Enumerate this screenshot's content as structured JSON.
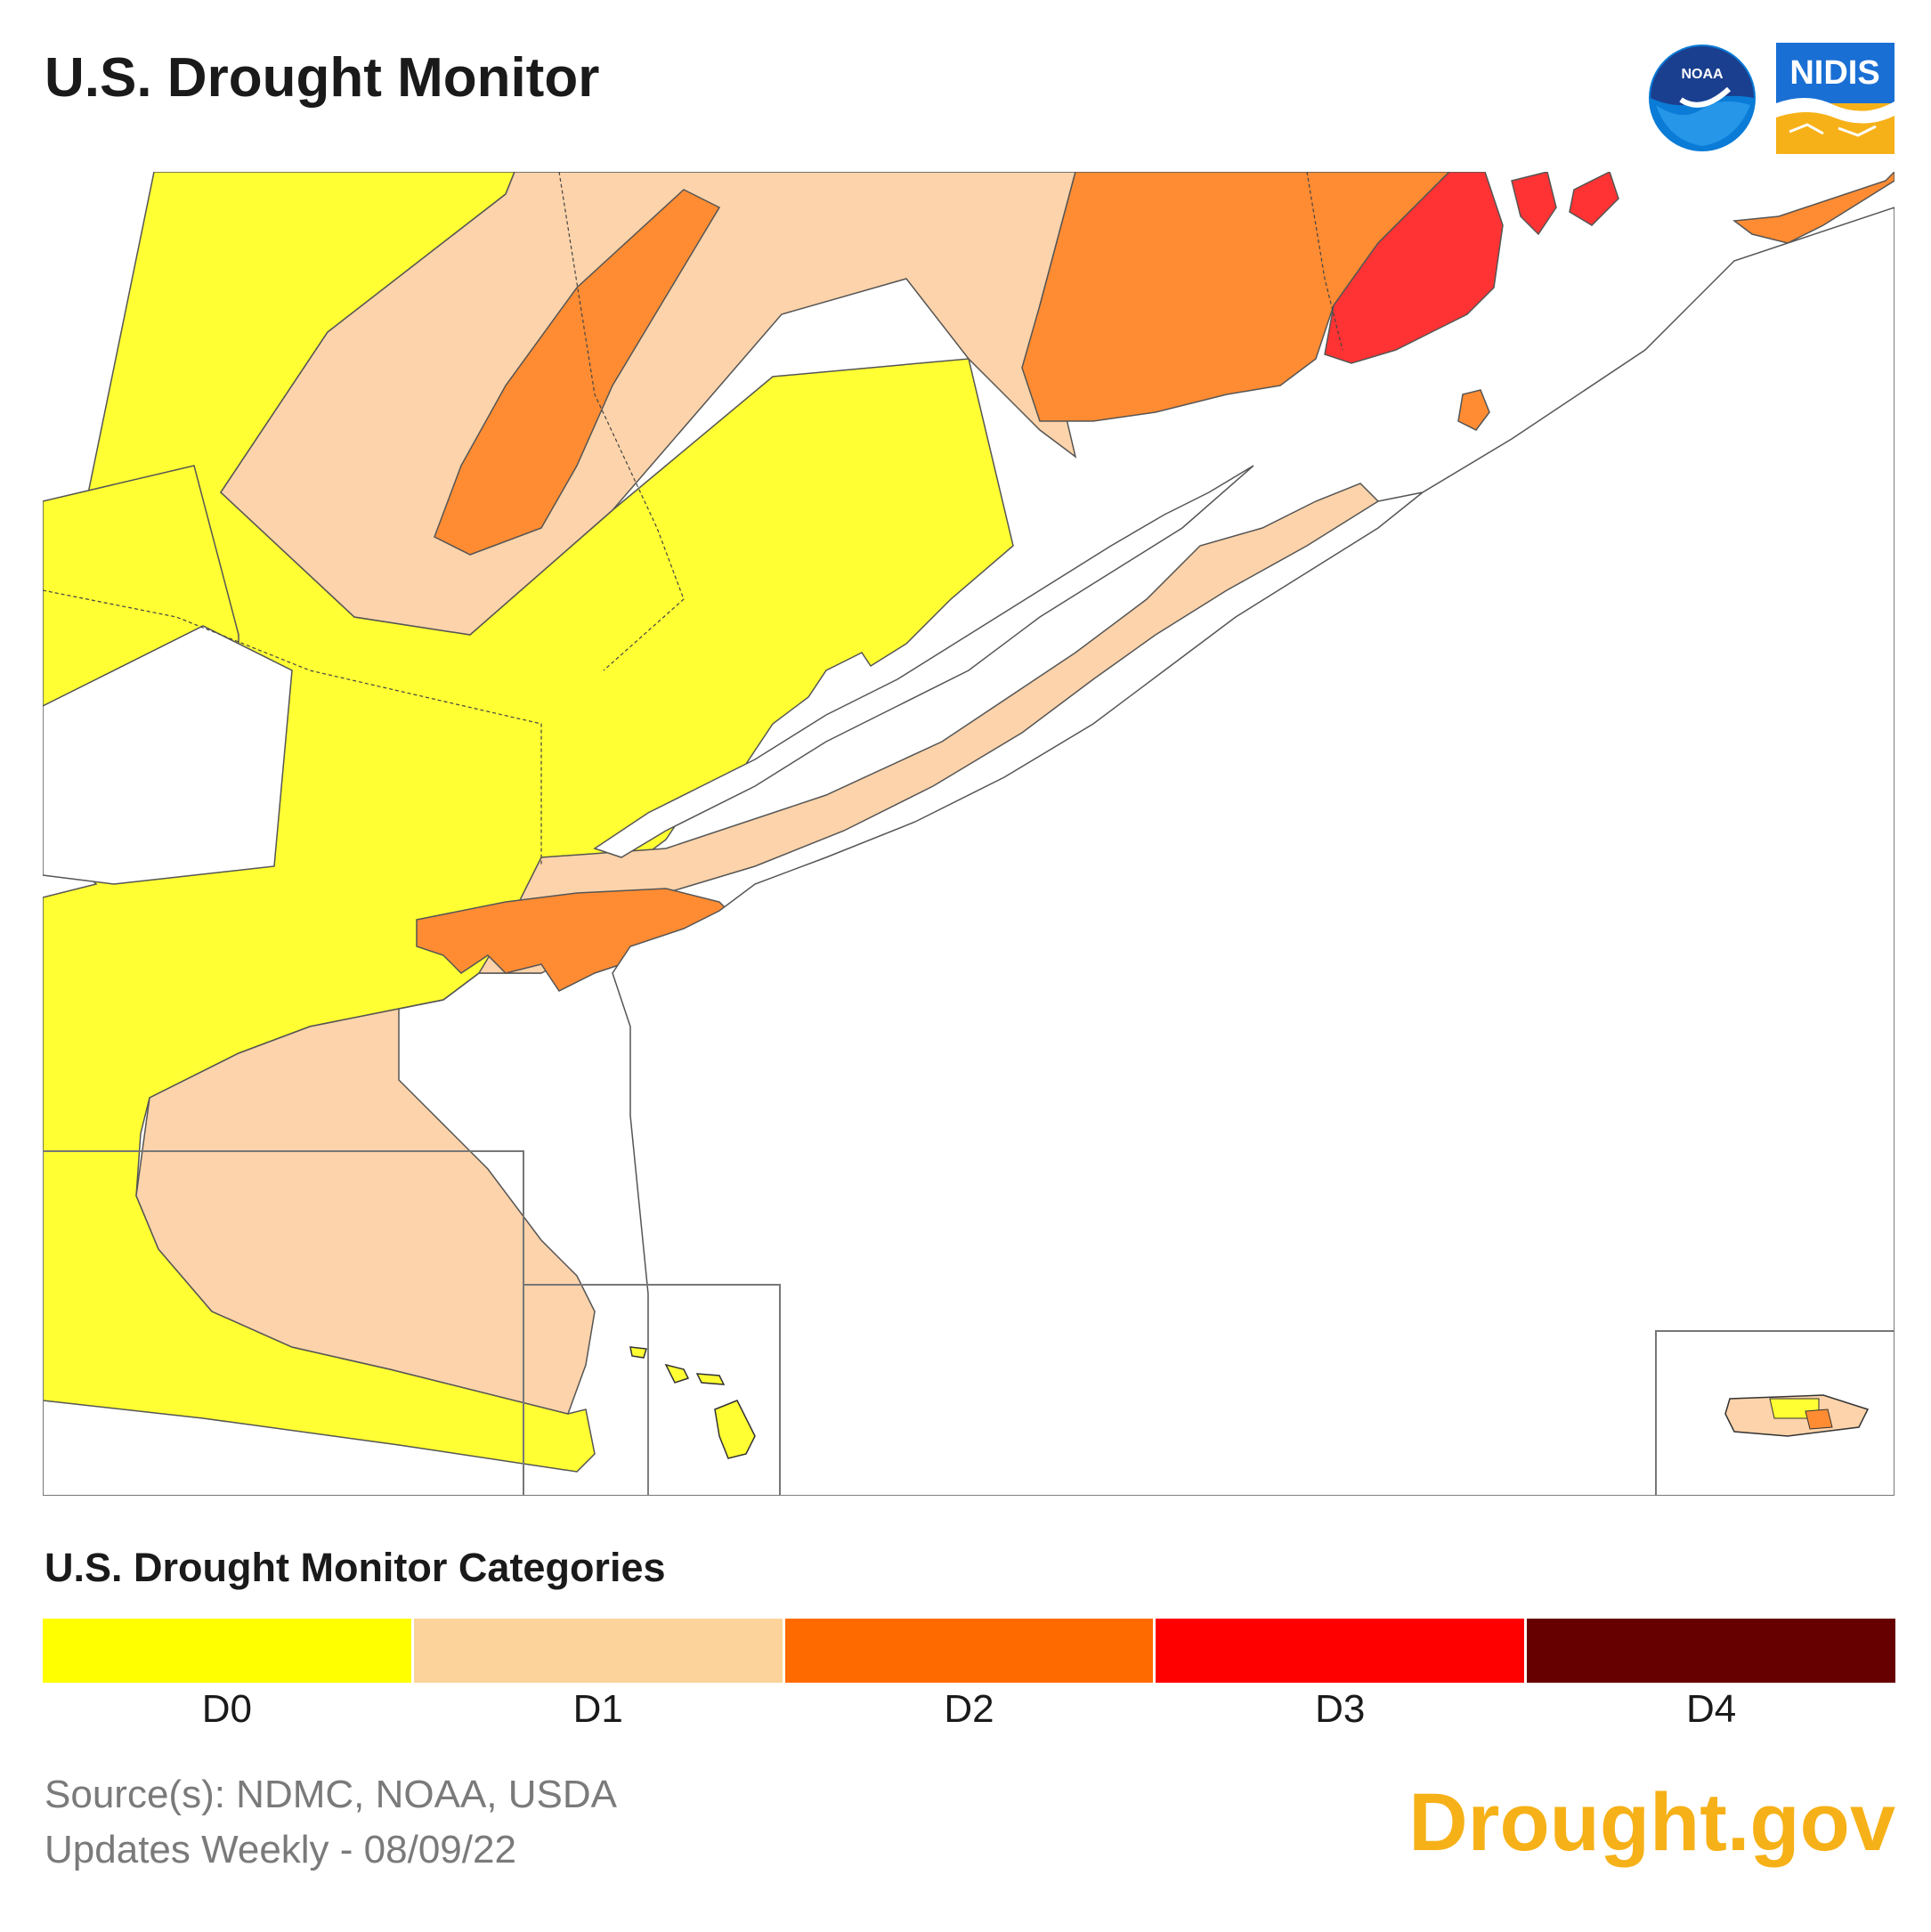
{
  "header": {
    "title": "U.S. Drought Monitor"
  },
  "logos": {
    "noaa_text": "NOAA",
    "nidis_text": "NIDIS"
  },
  "legend": {
    "title": "U.S. Drought Monitor Categories",
    "categories": [
      {
        "label": "D0",
        "color": "#ffff00"
      },
      {
        "label": "D1",
        "color": "#fcd39a"
      },
      {
        "label": "D2",
        "color": "#ff6a00"
      },
      {
        "label": "D3",
        "color": "#ff0000"
      },
      {
        "label": "D4",
        "color": "#660000"
      }
    ]
  },
  "map": {
    "region": "New York / southern New England",
    "colors": {
      "d0": "#ffff33",
      "d1": "#fcd3aa",
      "d2": "#ff8c33",
      "d3": "#ff3333",
      "water": "#ffffff"
    }
  },
  "footer": {
    "source": "Source(s): NDMC, NOAA, USDA",
    "updated": "Updates Weekly - 08/09/22",
    "brand": "Drought.gov"
  }
}
